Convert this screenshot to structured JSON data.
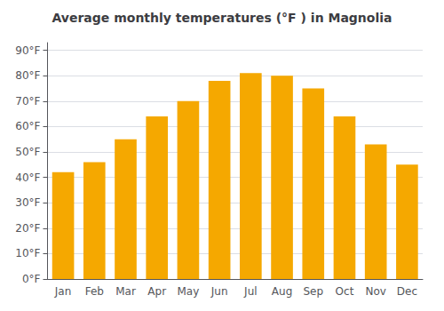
{
  "chart_data": {
    "type": "bar",
    "title": "Average monthly temperatures (°F ) in Magnolia",
    "categories": [
      "Jan",
      "Feb",
      "Mar",
      "Apr",
      "May",
      "Jun",
      "Jul",
      "Aug",
      "Sep",
      "Oct",
      "Nov",
      "Dec"
    ],
    "values": [
      42,
      46,
      55,
      64,
      70,
      78,
      81,
      80,
      75,
      64,
      53,
      45
    ],
    "color": "#F5A800",
    "ylim": [
      0,
      93
    ],
    "yticks": [
      {
        "value": 0,
        "label": "0°F"
      },
      {
        "value": 10,
        "label": "10°F"
      },
      {
        "value": 20,
        "label": "20°F"
      },
      {
        "value": 30,
        "label": "30°F"
      },
      {
        "value": 40,
        "label": "40°F"
      },
      {
        "value": 50,
        "label": "50°F"
      },
      {
        "value": 60,
        "label": "60°F"
      },
      {
        "value": 70,
        "label": "70°F"
      },
      {
        "value": 80,
        "label": "80°F"
      },
      {
        "value": 90,
        "label": "90°F"
      }
    ],
    "grid": true
  }
}
